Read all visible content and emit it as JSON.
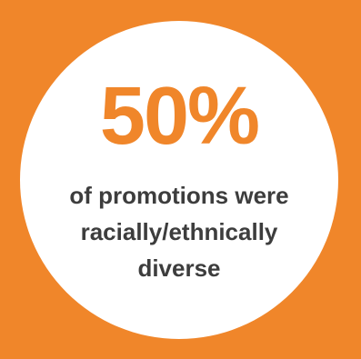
{
  "colors": {
    "background": "#f0862a",
    "circle": "#ffffff",
    "accent": "#f0862a",
    "caption": "#3d3d3d"
  },
  "stat": {
    "value": "50%",
    "caption_lines": [
      "of promotions were",
      "racially/ethnically",
      "diverse"
    ]
  }
}
